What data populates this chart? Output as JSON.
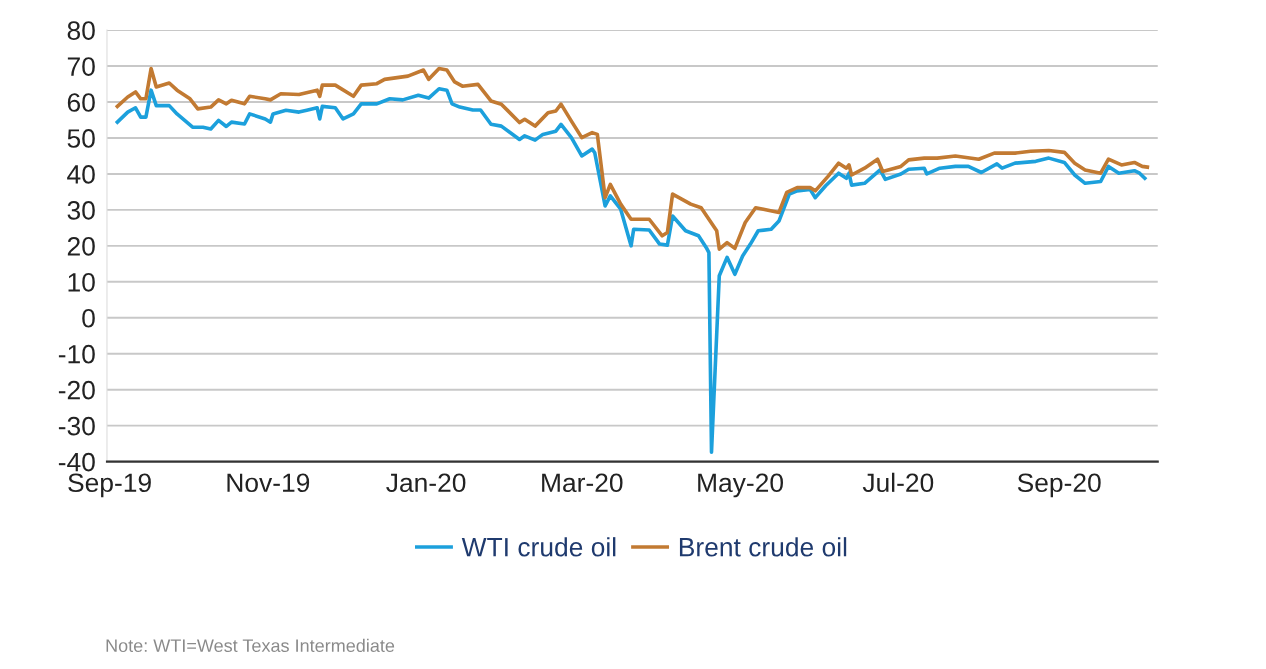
{
  "chart_data": {
    "type": "line",
    "xlim": [
      "2019-08-31",
      "2020-10-09"
    ],
    "xticks": [
      {
        "value": "2019-09-01",
        "label": "Sep-19"
      },
      {
        "value": "2019-11-01",
        "label": "Nov-19"
      },
      {
        "value": "2020-01-01",
        "label": "Jan-20"
      },
      {
        "value": "2020-03-01",
        "label": "Mar-20"
      },
      {
        "value": "2020-05-01",
        "label": "May-20"
      },
      {
        "value": "2020-07-01",
        "label": "Jul-20"
      },
      {
        "value": "2020-09-01",
        "label": "Sep-20"
      }
    ],
    "ylim": [
      -40,
      80
    ],
    "yticks": [
      -40,
      -30,
      -20,
      -10,
      0,
      10,
      20,
      30,
      40,
      50,
      60,
      70,
      80
    ],
    "grid": "y",
    "legend": "bottom",
    "line_style": "solid",
    "series": [
      {
        "name": "WTI crude oil",
        "color": "#1ca0dc",
        "x": [
          "2019-09-04",
          "2019-09-08",
          "2019-09-11",
          "2019-09-13",
          "2019-09-15",
          "2019-09-17",
          "2019-09-19",
          "2019-09-24",
          "2019-09-27",
          "2019-10-03",
          "2019-10-07",
          "2019-10-10",
          "2019-10-13",
          "2019-10-16",
          "2019-10-18",
          "2019-10-23",
          "2019-10-25",
          "2019-10-31",
          "2019-11-02",
          "2019-11-03",
          "2019-11-08",
          "2019-11-13",
          "2019-11-16",
          "2019-11-20",
          "2019-11-21",
          "2019-11-22",
          "2019-11-27",
          "2019-11-30",
          "2019-12-04",
          "2019-12-07",
          "2019-12-13",
          "2019-12-18",
          "2019-12-23",
          "2019-12-29",
          "2020-01-02",
          "2020-01-06",
          "2020-01-09",
          "2020-01-11",
          "2020-01-14",
          "2020-01-19",
          "2020-01-22",
          "2020-01-26",
          "2020-01-30",
          "2020-02-06",
          "2020-02-08",
          "2020-02-12",
          "2020-02-15",
          "2020-02-20",
          "2020-02-22",
          "2020-02-26",
          "2020-03-01",
          "2020-03-05",
          "2020-03-06",
          "2020-03-10",
          "2020-03-12",
          "2020-03-16",
          "2020-03-20",
          "2020-03-21",
          "2020-03-27",
          "2020-03-31",
          "2020-04-03",
          "2020-04-05",
          "2020-04-10",
          "2020-04-15",
          "2020-04-18",
          "2020-04-19",
          "2020-04-20",
          "2020-04-23",
          "2020-04-26",
          "2020-04-29",
          "2020-05-02",
          "2020-05-05",
          "2020-05-08",
          "2020-05-13",
          "2020-05-16",
          "2020-05-20",
          "2020-05-23",
          "2020-05-28",
          "2020-05-30",
          "2020-06-03",
          "2020-06-08",
          "2020-06-11",
          "2020-06-12",
          "2020-06-13",
          "2020-06-18",
          "2020-06-24",
          "2020-06-26",
          "2020-07-02",
          "2020-07-05",
          "2020-07-11",
          "2020-07-12",
          "2020-07-17",
          "2020-07-23",
          "2020-07-28",
          "2020-08-02",
          "2020-08-08",
          "2020-08-10",
          "2020-08-15",
          "2020-08-23",
          "2020-08-28",
          "2020-09-03",
          "2020-09-07",
          "2020-09-11",
          "2020-09-17",
          "2020-09-20",
          "2020-09-24",
          "2020-09-30",
          "2020-10-02",
          "2020-10-04"
        ],
        "values": [
          54.4,
          57.2,
          58.4,
          55.8,
          55.8,
          63.3,
          59.0,
          59.0,
          56.7,
          53.0,
          53.0,
          52.5,
          54.9,
          53.2,
          54.4,
          53.9,
          56.7,
          55.3,
          54.4,
          56.7,
          57.7,
          57.2,
          57.7,
          58.4,
          55.3,
          58.8,
          58.4,
          55.3,
          56.7,
          59.5,
          59.5,
          60.9,
          60.6,
          61.9,
          61.1,
          63.7,
          63.3,
          59.5,
          58.6,
          57.8,
          57.8,
          53.8,
          53.3,
          49.6,
          50.6,
          49.4,
          51.0,
          51.9,
          53.8,
          50.1,
          45.0,
          46.9,
          45.9,
          31.1,
          33.9,
          30.2,
          20.0,
          24.6,
          24.4,
          20.5,
          20.2,
          28.3,
          24.2,
          22.8,
          19.5,
          18.1,
          -37.4,
          11.7,
          16.8,
          12.1,
          17.2,
          20.5,
          24.2,
          24.6,
          26.9,
          34.4,
          35.3,
          35.7,
          33.4,
          36.7,
          40.2,
          38.8,
          40.2,
          36.9,
          37.4,
          41.1,
          38.5,
          40.0,
          41.3,
          41.6,
          40.0,
          41.6,
          42.1,
          42.1,
          40.4,
          42.8,
          41.6,
          43.0,
          43.5,
          44.4,
          43.2,
          39.7,
          37.4,
          37.9,
          42.1,
          40.2,
          40.9,
          40.2,
          38.8
        ]
      },
      {
        "name": "Brent crude oil",
        "color": "#c27a32",
        "x": [
          "2019-09-04",
          "2019-09-08",
          "2019-09-11",
          "2019-09-13",
          "2019-09-15",
          "2019-09-17",
          "2019-09-19",
          "2019-09-24",
          "2019-09-27",
          "2019-10-02",
          "2019-10-05",
          "2019-10-10",
          "2019-10-13",
          "2019-10-16",
          "2019-10-18",
          "2019-10-23",
          "2019-10-25",
          "2019-10-31",
          "2019-11-02",
          "2019-11-06",
          "2019-11-13",
          "2019-11-20",
          "2019-11-21",
          "2019-11-22",
          "2019-11-27",
          "2019-12-04",
          "2019-12-07",
          "2019-12-13",
          "2019-12-16",
          "2019-12-25",
          "2019-12-31",
          "2020-01-02",
          "2020-01-06",
          "2020-01-09",
          "2020-01-12",
          "2020-01-15",
          "2020-01-21",
          "2020-01-26",
          "2020-01-30",
          "2020-02-06",
          "2020-02-08",
          "2020-02-12",
          "2020-02-17",
          "2020-02-20",
          "2020-02-22",
          "2020-02-26",
          "2020-03-01",
          "2020-03-05",
          "2020-03-07",
          "2020-03-10",
          "2020-03-12",
          "2020-03-16",
          "2020-03-20",
          "2020-03-21",
          "2020-03-27",
          "2020-04-01",
          "2020-04-03",
          "2020-04-05",
          "2020-04-12",
          "2020-04-16",
          "2020-04-19",
          "2020-04-22",
          "2020-04-23",
          "2020-04-26",
          "2020-04-29",
          "2020-05-03",
          "2020-05-07",
          "2020-05-10",
          "2020-05-16",
          "2020-05-19",
          "2020-05-23",
          "2020-05-28",
          "2020-05-30",
          "2020-06-04",
          "2020-06-08",
          "2020-06-11",
          "2020-06-12",
          "2020-06-13",
          "2020-06-18",
          "2020-06-23",
          "2020-06-25",
          "2020-07-02",
          "2020-07-05",
          "2020-07-11",
          "2020-07-16",
          "2020-07-23",
          "2020-08-01",
          "2020-08-07",
          "2020-08-15",
          "2020-08-21",
          "2020-08-28",
          "2020-09-03",
          "2020-09-07",
          "2020-09-11",
          "2020-09-17",
          "2020-09-20",
          "2020-09-25",
          "2020-09-30",
          "2020-10-03",
          "2020-10-05"
        ],
        "values": [
          58.8,
          61.4,
          62.8,
          60.9,
          60.9,
          69.3,
          64.2,
          65.3,
          63.3,
          60.9,
          58.1,
          58.6,
          60.6,
          59.5,
          60.5,
          59.5,
          61.6,
          60.9,
          60.6,
          62.3,
          62.1,
          63.3,
          61.6,
          64.7,
          64.7,
          61.6,
          64.7,
          65.1,
          66.3,
          67.2,
          68.9,
          66.3,
          69.3,
          68.9,
          65.6,
          64.4,
          64.9,
          60.3,
          59.4,
          54.3,
          55.2,
          53.3,
          57.0,
          57.5,
          59.4,
          54.7,
          50.1,
          51.5,
          51.0,
          33.4,
          37.1,
          31.6,
          27.4,
          27.4,
          27.4,
          22.8,
          23.7,
          34.4,
          31.6,
          30.6,
          27.4,
          24.2,
          19.1,
          20.9,
          19.3,
          26.5,
          30.6,
          30.2,
          29.3,
          34.9,
          36.2,
          36.2,
          35.3,
          39.4,
          43.0,
          41.6,
          42.5,
          39.7,
          41.6,
          44.1,
          40.7,
          42.1,
          43.9,
          44.4,
          44.4,
          45.0,
          44.1,
          45.8,
          45.8,
          46.3,
          46.5,
          46.0,
          43.0,
          41.1,
          40.2,
          44.1,
          42.5,
          43.2,
          42.1,
          41.9
        ]
      }
    ],
    "annotations": [
      "Note: WTI=West Texas Intermediate"
    ]
  }
}
